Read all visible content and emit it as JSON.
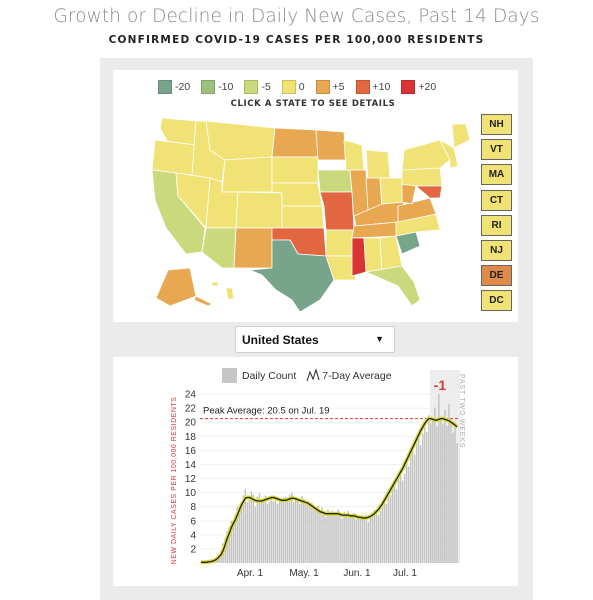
{
  "header": {
    "title": "Growth or Decline in Daily New Cases, Past 14 Days",
    "subtitle": "CONFIRMED COVID-19 CASES PER 100,000 RESIDENTS"
  },
  "legend": {
    "items": [
      {
        "label": "-20",
        "color": "#78a48c"
      },
      {
        "label": "-10",
        "color": "#9bc17c"
      },
      {
        "label": "-5",
        "color": "#c9d97c"
      },
      {
        "label": "0",
        "color": "#f0e274"
      },
      {
        "label": "+5",
        "color": "#e8a852"
      },
      {
        "label": "+10",
        "color": "#e2663f"
      },
      {
        "label": "+20",
        "color": "#d93434"
      }
    ]
  },
  "map": {
    "hint": "CLICK A STATE TO SEE DETAILS",
    "small_states": [
      {
        "code": "NH",
        "color": "#f0e274"
      },
      {
        "code": "VT",
        "color": "#f0e274"
      },
      {
        "code": "MA",
        "color": "#f0e274"
      },
      {
        "code": "CT",
        "color": "#f0e274"
      },
      {
        "code": "RI",
        "color": "#f0e274"
      },
      {
        "code": "NJ",
        "color": "#f0e274"
      },
      {
        "code": "DE",
        "color": "#e08a4a"
      },
      {
        "code": "DC",
        "color": "#f0e274"
      }
    ]
  },
  "selector": {
    "value": "United States",
    "arrow_icon": "caret-down-icon"
  },
  "chart_legend": {
    "daily": "Daily Count",
    "avg": "7-Day Average"
  },
  "chart_data": {
    "type": "bar",
    "ylabel": "NEW DAILY CASES PER 100,000 RESIDENTS",
    "ylim": [
      0,
      24
    ],
    "yticks": [
      2,
      4,
      6,
      8,
      10,
      12,
      14,
      16,
      18,
      20,
      22,
      24
    ],
    "xticks": [
      "Apr. 1",
      "May. 1",
      "Jun. 1",
      "Jul. 1"
    ],
    "peak_label": "Peak Average: 20.5 on Jul. 19",
    "peak_value": 20.5,
    "change_value": "-1",
    "window_label": "PAST TWO WEEKS",
    "colors": {
      "bar": "#c4c4c4",
      "line": "#222222",
      "line_glow": "#d7d93a",
      "peak": "#d43a3a"
    },
    "daily_series": [
      0.1,
      0.1,
      0.1,
      0.2,
      0.2,
      0.3,
      0.4,
      0.6,
      0.8,
      1.2,
      1.8,
      2.8,
      3.5,
      4.5,
      5.1,
      6.0,
      5.4,
      6.9,
      8.0,
      7.7,
      8.2,
      9.6,
      10.5,
      8.6,
      9.3,
      10.2,
      9.8,
      8.0,
      9.4,
      9.9,
      8.7,
      9.0,
      9.6,
      8.4,
      8.7,
      9.0,
      8.8,
      9.3,
      8.4,
      8.9,
      8.7,
      9.3,
      9.4,
      8.8,
      9.7,
      10.0,
      8.6,
      9.1,
      8.9,
      8.4,
      9.5,
      9.1,
      8.5,
      8.4,
      8.0,
      8.6,
      8.2,
      7.4,
      8.1,
      7.2,
      7.9,
      7.0,
      6.5,
      7.6,
      6.9,
      7.4,
      6.8,
      7.1,
      7.6,
      6.9,
      6.3,
      7.3,
      6.6,
      7.4,
      6.6,
      6.4,
      7.1,
      6.2,
      6.7,
      6.3,
      6.8,
      6.1,
      6.8,
      5.8,
      6.6,
      6.5,
      7.5,
      7.2,
      6.8,
      7.4,
      7.9,
      9.0,
      8.4,
      10.3,
      9.6,
      10.7,
      11.3,
      10.5,
      11.9,
      12.6,
      11.7,
      12.7,
      14.4,
      13.7,
      15.4,
      16.3,
      15.4,
      16.9,
      18.4,
      16.7,
      18.4,
      19.3,
      18.6,
      21.0,
      19.8,
      20.5,
      22.1,
      19.4,
      24.0,
      20.3,
      19.7,
      21.8,
      19.5,
      22.6,
      20.2,
      18.5,
      20.1,
      17.0
    ],
    "avg_series": [
      0.1,
      0.1,
      0.1,
      0.1,
      0.2,
      0.2,
      0.3,
      0.4,
      0.6,
      0.9,
      1.2,
      1.8,
      2.6,
      3.5,
      4.2,
      5.0,
      5.6,
      6.1,
      6.8,
      7.5,
      8.2,
      8.7,
      9.2,
      9.3,
      9.3,
      9.2,
      9.0,
      8.9,
      8.8,
      8.8,
      8.8,
      8.9,
      9.0,
      9.1,
      9.2,
      9.3,
      9.3,
      9.2,
      9.1,
      9.0,
      8.9,
      8.9,
      8.9,
      9.0,
      9.1,
      9.2,
      9.2,
      9.1,
      9.0,
      8.9,
      8.8,
      8.7,
      8.6,
      8.5,
      8.3,
      8.1,
      7.9,
      7.7,
      7.5,
      7.3,
      7.2,
      7.1,
      7.0,
      7.0,
      7.0,
      7.0,
      7.0,
      7.0,
      7.0,
      6.9,
      6.8,
      6.8,
      6.8,
      6.8,
      6.7,
      6.7,
      6.7,
      6.6,
      6.5,
      6.5,
      6.4,
      6.4,
      6.4,
      6.5,
      6.6,
      6.8,
      7.0,
      7.3,
      7.6,
      8.0,
      8.4,
      8.9,
      9.4,
      9.9,
      10.4,
      10.9,
      11.4,
      11.9,
      12.4,
      12.9,
      13.4,
      14.0,
      14.6,
      15.2,
      15.8,
      16.4,
      17.0,
      17.6,
      18.2,
      18.8,
      19.3,
      19.8,
      20.2,
      20.5,
      20.5,
      20.4,
      20.3,
      20.3,
      20.4,
      20.5,
      20.5,
      20.4,
      20.3,
      20.2,
      20.0,
      19.8,
      19.6,
      19.3
    ]
  }
}
